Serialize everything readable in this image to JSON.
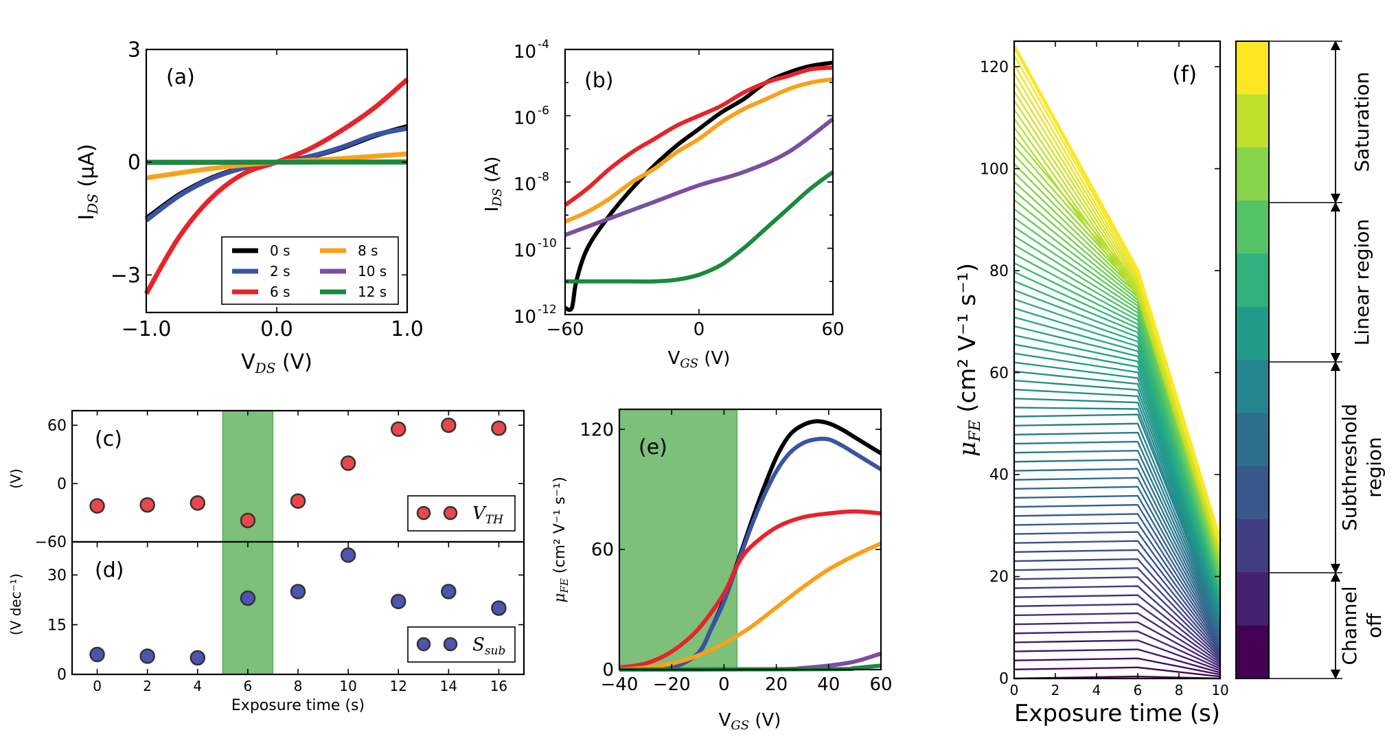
{
  "figure": {
    "colors": {
      "t0": "#000000",
      "t2": "#3a53a4",
      "t6": "#e8232a",
      "t8": "#f7a21b",
      "t10": "#7b4fa0",
      "t12": "#1a8a3e",
      "red_marker": "#e8474c",
      "blue_marker": "#4d55b0",
      "shade": "#7cc07a"
    }
  },
  "chart_data": [
    {
      "panel": "a",
      "label": "(a)",
      "type": "line",
      "xlabel": "V_DS (V)",
      "xlabel_main": "V",
      "xlabel_sub": "DS",
      "xlabel_unit": " (V)",
      "ylabel": "I_DS (μA)",
      "ylabel_main": "I",
      "ylabel_sub": "DS",
      "ylabel_unit": " (μA)",
      "xlim": [
        -1.0,
        1.0
      ],
      "ylim": [
        -4,
        3
      ],
      "xticks": [
        -1.0,
        0.0,
        1.0
      ],
      "xtick_labels": [
        "−1.0",
        "0.0",
        "1.0"
      ],
      "yticks": [
        -3,
        0,
        3
      ],
      "ytick_labels": [
        "−3",
        "0",
        "3"
      ],
      "legend_labels": [
        "0 s",
        "2 s",
        "6 s",
        "8 s",
        "10 s",
        "12 s"
      ],
      "series": [
        {
          "name": "0 s",
          "x": [
            -1.0,
            -0.75,
            -0.5,
            -0.25,
            0.0,
            0.25,
            0.5,
            0.75,
            1.0
          ],
          "values": [
            -1.5,
            -0.87,
            -0.42,
            -0.14,
            0.0,
            0.14,
            0.38,
            0.7,
            0.95
          ]
        },
        {
          "name": "2 s",
          "x": [
            -1.0,
            -0.75,
            -0.5,
            -0.25,
            0.0,
            0.25,
            0.5,
            0.75,
            1.0
          ],
          "values": [
            -1.55,
            -0.9,
            -0.44,
            -0.15,
            0.0,
            0.15,
            0.4,
            0.72,
            0.9
          ]
        },
        {
          "name": "6 s",
          "x": [
            -1.0,
            -0.75,
            -0.5,
            -0.25,
            0.0,
            0.25,
            0.5,
            0.75,
            1.0
          ],
          "values": [
            -3.5,
            -2.0,
            -0.95,
            -0.3,
            0.0,
            0.35,
            0.85,
            1.45,
            2.2
          ]
        },
        {
          "name": "8 s",
          "x": [
            -1.0,
            -0.5,
            0.0,
            0.5,
            1.0
          ],
          "values": [
            -0.42,
            -0.17,
            0.0,
            0.1,
            0.22
          ]
        },
        {
          "name": "10 s",
          "x": [
            -1.0,
            0.0,
            1.0
          ],
          "values": [
            -0.01,
            0.0,
            0.01
          ]
        },
        {
          "name": "12 s",
          "x": [
            -1.0,
            0.0,
            1.0
          ],
          "values": [
            0.0,
            0.0,
            0.0
          ]
        }
      ]
    },
    {
      "panel": "b",
      "label": "(b)",
      "type": "line",
      "yscale": "log",
      "xlabel": "V_GS (V)",
      "xlabel_main": "V",
      "xlabel_sub": "GS",
      "xlabel_unit": " (V)",
      "ylabel": "I_DS (A)",
      "ylabel_main": "I",
      "ylabel_sub": "DS",
      "ylabel_unit": " (A)",
      "xlim": [
        -60,
        60
      ],
      "ylim_exp": [
        -12,
        -4
      ],
      "xticks": [
        -60,
        0,
        60
      ],
      "xtick_labels": [
        "−60",
        "0",
        "60"
      ],
      "yticks_exp": [
        -12,
        -10,
        -8,
        -6,
        -4
      ],
      "ytick_labels": [
        "10",
        "10",
        "10",
        "10",
        "10"
      ],
      "ytick_exp_labels": [
        "-12",
        "-10",
        "-8",
        "-6",
        "-4"
      ],
      "series": [
        {
          "name": "0 s",
          "x": [
            -60,
            -57,
            -55,
            -50,
            -40,
            -30,
            -20,
            -10,
            0,
            10,
            20,
            30,
            40,
            50,
            60
          ],
          "log10_values": [
            -11.8,
            -11.8,
            -11.0,
            -10.0,
            -9.0,
            -8.2,
            -7.5,
            -6.9,
            -6.4,
            -5.9,
            -5.5,
            -5.0,
            -4.7,
            -4.5,
            -4.4
          ]
        },
        {
          "name": "6 s",
          "x": [
            -60,
            -50,
            -40,
            -30,
            -20,
            -10,
            0,
            10,
            20,
            30,
            40,
            50,
            60
          ],
          "log10_values": [
            -8.7,
            -8.2,
            -7.6,
            -7.1,
            -6.7,
            -6.3,
            -6.0,
            -5.7,
            -5.3,
            -5.0,
            -4.8,
            -4.6,
            -4.55
          ]
        },
        {
          "name": "8 s",
          "x": [
            -60,
            -50,
            -40,
            -30,
            -20,
            -10,
            0,
            10,
            20,
            30,
            40,
            50,
            60
          ],
          "log10_values": [
            -9.2,
            -8.9,
            -8.5,
            -8.0,
            -7.6,
            -7.1,
            -6.7,
            -6.2,
            -5.8,
            -5.5,
            -5.2,
            -5.0,
            -4.9
          ]
        },
        {
          "name": "10 s",
          "x": [
            -60,
            -40,
            -20,
            0,
            20,
            40,
            60
          ],
          "log10_values": [
            -9.6,
            -9.1,
            -8.6,
            -8.1,
            -7.7,
            -7.1,
            -6.1
          ]
        },
        {
          "name": "12 s",
          "x": [
            -60,
            -50,
            -40,
            -30,
            -20,
            -10,
            0,
            10,
            20,
            30,
            40,
            50,
            60
          ],
          "log10_values": [
            -11.0,
            -11.0,
            -11.0,
            -11.0,
            -11.0,
            -10.95,
            -10.8,
            -10.5,
            -10.0,
            -9.4,
            -8.8,
            -8.2,
            -7.7
          ]
        }
      ]
    },
    {
      "panel": "c",
      "label": "(c)",
      "type": "scatter",
      "xlim": [
        -1,
        17
      ],
      "ylim": [
        -60,
        75
      ],
      "yticks": [
        -60,
        0,
        60
      ],
      "ytick_labels": [
        "−60",
        "0",
        "60"
      ],
      "ylabel": "(V)",
      "shade_x": [
        5,
        7
      ],
      "legend_label": "V_TH",
      "legend_main": "V",
      "legend_sub": "TH",
      "x": [
        0,
        2,
        4,
        6,
        8,
        10,
        12,
        14,
        16
      ],
      "values": [
        -23,
        -22,
        -20,
        -38,
        -18,
        21,
        56,
        60,
        57
      ]
    },
    {
      "panel": "d",
      "label": "(d)",
      "type": "scatter",
      "xlim": [
        -1,
        17
      ],
      "ylim": [
        0,
        40
      ],
      "xticks": [
        0,
        2,
        4,
        6,
        8,
        10,
        12,
        14,
        16
      ],
      "xtick_labels": [
        "0",
        "2",
        "4",
        "6",
        "8",
        "10",
        "12",
        "14",
        "16"
      ],
      "yticks": [
        0,
        15,
        30
      ],
      "ytick_labels": [
        "0",
        "15",
        "30"
      ],
      "ylabel": "(V dec⁻¹)",
      "xlabel": "Exposure time (s)",
      "shade_x": [
        5,
        7
      ],
      "legend_label": "S_sub",
      "legend_main": "S",
      "legend_sub": "sub",
      "x": [
        0,
        2,
        4,
        6,
        8,
        10,
        12,
        14,
        16
      ],
      "values": [
        6,
        5.5,
        5,
        23,
        25,
        36,
        22,
        25,
        20
      ]
    },
    {
      "panel": "e",
      "label": "(e)",
      "type": "line",
      "xlabel": "V_GS (V)",
      "xlabel_main": "V",
      "xlabel_sub": "GS",
      "xlabel_unit": " (V)",
      "ylabel": "μ_FE (cm² V⁻¹ s⁻¹)",
      "ylabel_main": "μ",
      "ylabel_sub": "FE",
      "ylabel_unit": " (cm² V⁻¹ s⁻¹)",
      "xlim": [
        -40,
        60
      ],
      "ylim": [
        0,
        130
      ],
      "shade_x": [
        -40,
        5
      ],
      "xticks": [
        -40,
        -20,
        0,
        20,
        40,
        60
      ],
      "xtick_labels": [
        "−40",
        "−20",
        "0",
        "20",
        "40",
        "60"
      ],
      "yticks": [
        0,
        60,
        120
      ],
      "ytick_labels": [
        "0",
        "60",
        "120"
      ],
      "series": [
        {
          "name": "0 s",
          "x": [
            -40,
            -30,
            -20,
            -10,
            -5,
            0,
            5,
            10,
            15,
            20,
            25,
            30,
            35,
            40,
            45,
            50,
            55,
            60
          ],
          "values": [
            0,
            0.2,
            1,
            8,
            20,
            35,
            53,
            72,
            90,
            106,
            117,
            122,
            124,
            123,
            120,
            116,
            112,
            108
          ]
        },
        {
          "name": "2 s",
          "x": [
            -40,
            -30,
            -20,
            -10,
            -5,
            0,
            5,
            10,
            15,
            20,
            25,
            30,
            35,
            40,
            45,
            50,
            55,
            60
          ],
          "values": [
            0,
            0.2,
            1,
            8,
            20,
            34,
            52,
            70,
            86,
            99,
            108,
            113,
            115,
            115,
            112,
            108,
            104,
            100
          ]
        },
        {
          "name": "6 s",
          "x": [
            -40,
            -30,
            -20,
            -10,
            0,
            5,
            10,
            20,
            30,
            40,
            50,
            60
          ],
          "values": [
            1,
            3,
            9,
            20,
            38,
            52,
            61,
            71,
            76,
            78,
            79,
            78
          ]
        },
        {
          "name": "8 s",
          "x": [
            -40,
            -30,
            -20,
            -10,
            0,
            10,
            20,
            30,
            40,
            50,
            60
          ],
          "values": [
            0,
            1,
            3,
            7,
            13,
            21,
            31,
            41,
            50,
            57,
            63
          ]
        },
        {
          "name": "10 s",
          "x": [
            -40,
            20,
            30,
            40,
            50,
            60
          ],
          "values": [
            0,
            0.2,
            0.8,
            2,
            4,
            8
          ]
        },
        {
          "name": "12 s",
          "x": [
            -40,
            40,
            50,
            60
          ],
          "values": [
            0,
            0.2,
            0.8,
            2
          ]
        }
      ]
    },
    {
      "panel": "f",
      "label": "(f)",
      "type": "line",
      "xlabel": "Exposure time (s)",
      "ylabel": "μ_FE (cm² V⁻¹ s⁻¹)",
      "ylabel_main": "μ",
      "ylabel_sub": "FE",
      "ylabel_unit": " (cm² V⁻¹ s⁻¹)",
      "xlim": [
        0,
        10
      ],
      "ylim": [
        0,
        125
      ],
      "xticks": [
        0,
        2,
        4,
        6,
        8,
        10
      ],
      "xtick_labels": [
        "0",
        "2",
        "4",
        "6",
        "8",
        "10"
      ],
      "yticks": [
        0,
        20,
        40,
        60,
        80,
        100,
        120
      ],
      "ytick_labels": [
        "0",
        "20",
        "40",
        "60",
        "80",
        "100",
        "120"
      ],
      "envelope": {
        "x": [
          0,
          6,
          10
        ],
        "top_values": [
          124,
          80,
          27
        ]
      },
      "breakpoint_x": 6,
      "colorbar_regions": [
        "Saturation",
        "Linear region",
        "Subthreshold region",
        "Channel off"
      ],
      "colorbar_region_lines": [
        [
          "Saturation"
        ],
        [
          "Linear region"
        ],
        [
          "Subthreshold",
          "region"
        ],
        [
          "Channel",
          "off"
        ]
      ]
    }
  ]
}
